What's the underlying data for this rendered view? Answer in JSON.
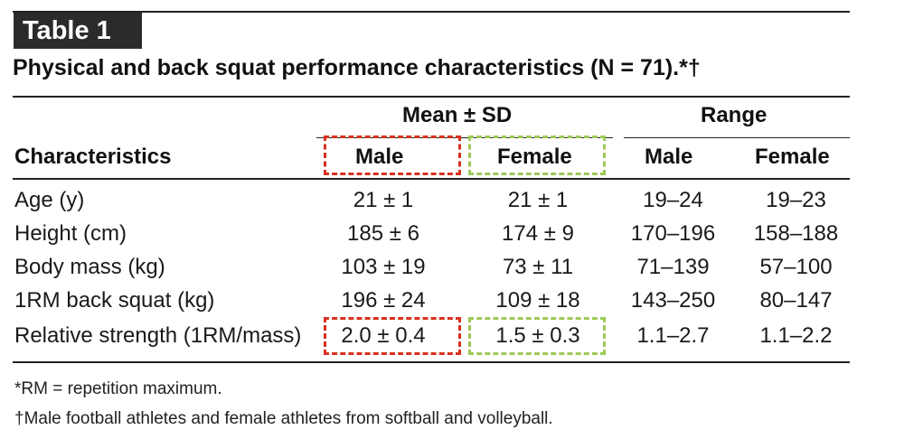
{
  "table": {
    "badge": "Table 1",
    "title": "Physical and back squat performance characteristics (N = 71).*†",
    "group_mean_sd": "Mean ± SD",
    "group_range": "Range",
    "col_characteristics": "Characteristics",
    "col_mean_male": "Male",
    "col_mean_female": "Female",
    "col_range_male": "Male",
    "col_range_female": "Female",
    "rows": [
      {
        "label": "Age (y)",
        "mean_male": "21 ± 1",
        "mean_female": "21 ± 1",
        "range_male": "19–24",
        "range_female": "19–23"
      },
      {
        "label": "Height (cm)",
        "mean_male": "185 ± 6",
        "mean_female": "174 ± 9",
        "range_male": "170–196",
        "range_female": "158–188"
      },
      {
        "label": "Body mass (kg)",
        "mean_male": "103 ± 19",
        "mean_female": "73 ± 11",
        "range_male": "71–139",
        "range_female": "57–100"
      },
      {
        "label": "1RM back squat (kg)",
        "mean_male": "196 ± 24",
        "mean_female": "109 ± 18",
        "range_male": "143–250",
        "range_female": "80–147"
      },
      {
        "label": "Relative strength (1RM/mass)",
        "mean_male": "2.0 ± 0.4",
        "mean_female": "1.5 ± 0.3",
        "range_male": "1.1–2.7",
        "range_female": "1.1–2.2"
      }
    ],
    "footnotes": [
      "*RM = repetition maximum.",
      "†Male football athletes and female athletes from softball and volleyball."
    ]
  },
  "highlight_colors": {
    "male": "#d7311f",
    "female": "#9ccb55"
  }
}
